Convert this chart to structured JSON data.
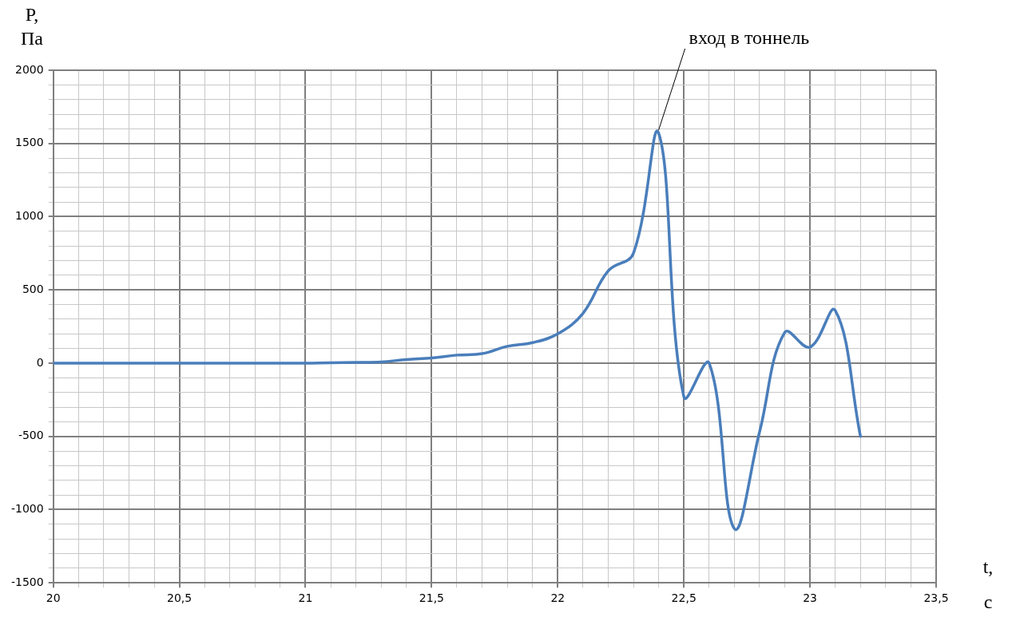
{
  "chart_data": {
    "type": "line",
    "xlabel": "t,\nс",
    "ylabel": "P,\nПа",
    "x": [
      20,
      20.1,
      20.2,
      20.3,
      20.4,
      20.5,
      20.6,
      20.7,
      20.8,
      20.9,
      21,
      21.1,
      21.2,
      21.3,
      21.4,
      21.5,
      21.6,
      21.7,
      21.8,
      21.9,
      22,
      22.1,
      22.2,
      22.3,
      22.4,
      22.5,
      22.6,
      22.7,
      22.8,
      22.9,
      23,
      23.1,
      23.2
    ],
    "series": [
      {
        "color": "#4a7ebb",
        "values": [
          0,
          0,
          0,
          0,
          0,
          0,
          0,
          0,
          0,
          0,
          0,
          3,
          5,
          8,
          25,
          35,
          55,
          65,
          115,
          140,
          200,
          340,
          630,
          750,
          1570,
          -230,
          0,
          -1130,
          -470,
          210,
          110,
          360,
          -500
        ]
      }
    ],
    "xlim": [
      20,
      23.5
    ],
    "xticks": [
      20,
      {
        "value": 20.1,
        "label": null
      },
      {
        "value": 20.2,
        "label": null
      },
      {
        "value": 20.3,
        "label": null
      },
      {
        "value": 20.4,
        "label": null
      },
      {
        "value": 20.5,
        "label": "20,5"
      },
      {
        "value": 20.6,
        "label": null
      },
      {
        "value": 20.7,
        "label": null
      },
      {
        "value": 20.8,
        "label": null
      },
      {
        "value": 20.9,
        "label": null
      },
      21,
      {
        "value": 21.1,
        "label": null
      },
      {
        "value": 21.2,
        "label": null
      },
      {
        "value": 21.3,
        "label": null
      },
      {
        "value": 21.4,
        "label": null
      },
      {
        "value": 21.5,
        "label": "21,5"
      },
      {
        "value": 21.6,
        "label": null
      },
      {
        "value": 21.7,
        "label": null
      },
      {
        "value": 21.8,
        "label": null
      },
      {
        "value": 21.9,
        "label": null
      },
      22,
      {
        "value": 22.1,
        "label": null
      },
      {
        "value": 22.2,
        "label": null
      },
      {
        "value": 22.3,
        "label": null
      },
      {
        "value": 22.4,
        "label": null
      },
      {
        "value": 22.5,
        "label": "22,5"
      },
      {
        "value": 22.6,
        "label": null
      },
      {
        "value": 22.7,
        "label": null
      },
      {
        "value": 22.8,
        "label": null
      },
      {
        "value": 22.9,
        "label": null
      },
      23,
      {
        "value": 23.1,
        "label": null
      },
      {
        "value": 23.2,
        "label": null
      },
      {
        "value": 23.3,
        "label": null
      },
      {
        "value": 23.4,
        "label": null
      },
      {
        "value": 23.5,
        "label": "23,5"
      }
    ],
    "ylim": [
      -1500,
      2000
    ],
    "yticks": [
      -1500,
      {
        "value": -1400,
        "label": null
      },
      {
        "value": -1300,
        "label": null
      },
      {
        "value": -1200,
        "label": null
      },
      {
        "value": -1100,
        "label": null
      },
      -1000,
      {
        "value": -900,
        "label": null
      },
      {
        "value": -800,
        "label": null
      },
      {
        "value": -700,
        "label": null
      },
      {
        "value": -600,
        "label": null
      },
      -500,
      {
        "value": -400,
        "label": null
      },
      {
        "value": -300,
        "label": null
      },
      {
        "value": -200,
        "label": null
      },
      {
        "value": -100,
        "label": null
      },
      0,
      {
        "value": 100,
        "label": null
      },
      {
        "value": 200,
        "label": null
      },
      {
        "value": 300,
        "label": null
      },
      {
        "value": 400,
        "label": null
      },
      500,
      {
        "value": 600,
        "label": null
      },
      {
        "value": 700,
        "label": null
      },
      {
        "value": 800,
        "label": null
      },
      {
        "value": 900,
        "label": null
      },
      1000,
      {
        "value": 1100,
        "label": null
      },
      {
        "value": 1200,
        "label": null
      },
      {
        "value": 1300,
        "label": null
      },
      {
        "value": 1400,
        "label": null
      },
      1500,
      {
        "value": 1600,
        "label": null
      },
      {
        "value": 1700,
        "label": null
      },
      {
        "value": 1800,
        "label": null
      },
      {
        "value": 1900,
        "label": null
      },
      2000
    ],
    "annotations": [
      {
        "text": "вход в тоннель",
        "x": 22.4,
        "y": 1570
      }
    ],
    "grid": true,
    "legend": false,
    "marker": "none",
    "line_style": "solid"
  }
}
